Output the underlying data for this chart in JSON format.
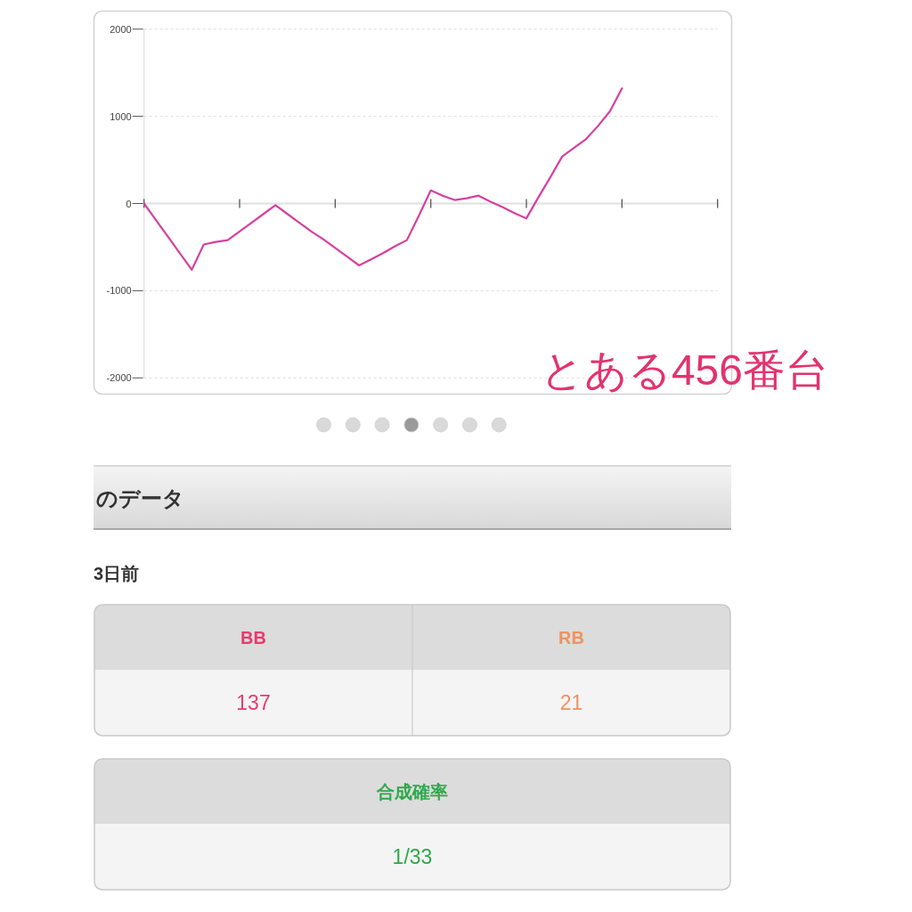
{
  "chart_data": [
    {
      "type": "line",
      "categories": [
        null,
        null,
        null,
        null,
        null,
        null,
        null,
        null,
        null,
        null,
        null,
        null,
        null,
        null,
        null,
        null,
        null,
        null,
        null,
        null,
        null,
        null,
        null,
        null,
        null,
        null,
        null,
        null,
        null,
        null,
        null,
        null,
        null,
        null,
        null,
        null,
        null,
        null,
        null,
        null,
        null,
        null,
        null,
        null,
        null,
        null,
        null,
        null,
        null
      ],
      "series": [
        {
          "color": "#d6409f",
          "values": [
            0,
            -190,
            -380,
            -570,
            -760,
            -470,
            -440,
            -420,
            -320,
            -220,
            -120,
            -20,
            -120,
            -220,
            -320,
            -410,
            -510,
            -610,
            -710,
            -640,
            -570,
            -490,
            -420,
            -140,
            150,
            90,
            40,
            60,
            90,
            20,
            -40,
            -110,
            -170,
            70,
            300,
            540,
            640,
            740,
            890,
            1060,
            1320,
            null,
            null,
            null,
            null,
            null,
            null,
            null,
            null
          ]
        }
      ],
      "ylim": [
        -2000,
        2000
      ],
      "yticks": [
        -2000,
        -1000,
        0,
        1000,
        2000
      ],
      "grid": "y",
      "tick_labels": "y",
      "annotations": [
        "とある456番台"
      ]
    },
    {
      "type": "other",
      "title": "のデータ",
      "subtitle": "3日前",
      "categories": [
        "BB",
        "RB",
        "合成確率"
      ],
      "value_labels": [
        "137",
        "21",
        "1/33"
      ],
      "colors": [
        "#e83a6e",
        "#ef9262",
        "#2fa84a"
      ]
    }
  ]
}
